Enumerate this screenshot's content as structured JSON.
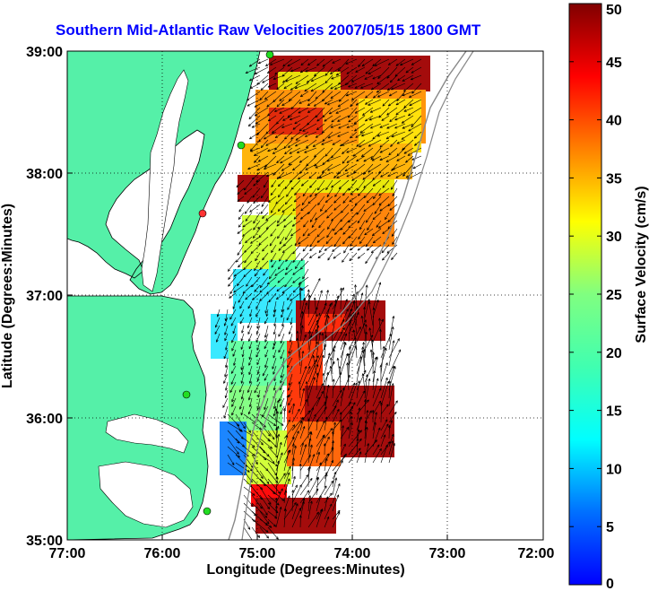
{
  "title": "Southern Mid-Atlantic Raw Velocities 2007/05/15 1800 GMT",
  "x_axis": {
    "label": "Longitude (Degrees:Minutes)",
    "ticks": [
      "77:00",
      "76:00",
      "75:00",
      "74:00",
      "73:00",
      "72:00"
    ]
  },
  "y_axis": {
    "label": "Latitude (Degrees:Minutes)",
    "ticks": [
      "39:00",
      "38:00",
      "37:00",
      "36:00",
      "35:00"
    ]
  },
  "colorbar": {
    "label": "Surface Velocity (cm/s)",
    "ticks": [
      "0",
      "5",
      "10",
      "15",
      "20",
      "25",
      "30",
      "35",
      "40",
      "45",
      "50"
    ],
    "min": 0,
    "max": 50
  },
  "map": {
    "lon_range": [
      -77,
      -72
    ],
    "lat_range": [
      35,
      39
    ],
    "land_color": "#55f0a8",
    "station_colors": {
      "active": "#22dd22",
      "inactive": "#ff3333"
    }
  }
}
